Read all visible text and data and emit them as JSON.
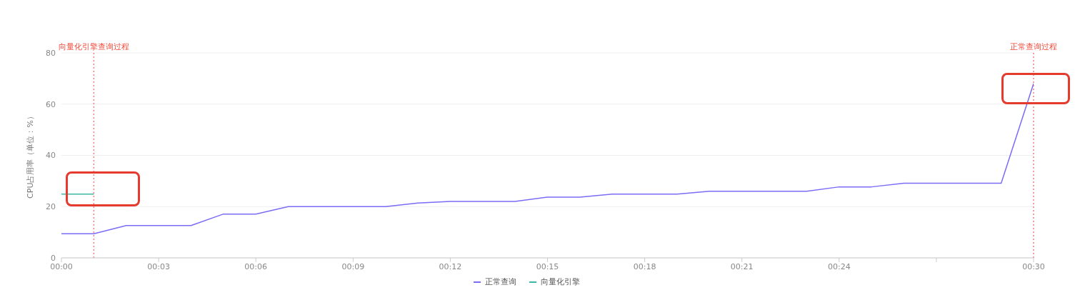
{
  "chart_data": {
    "type": "line",
    "ylabel": "CPU占用率（单位：%）",
    "x": [
      0,
      1,
      2,
      3,
      4,
      5,
      6,
      7,
      8,
      9,
      10,
      11,
      12,
      13,
      14,
      15,
      16,
      17,
      18,
      19,
      20,
      21,
      22,
      23,
      24,
      25,
      26,
      27,
      28,
      29,
      30
    ],
    "series": [
      {
        "name": "正常查询",
        "color": "#7b6cf6",
        "values": [
          9.4,
          9.4,
          12.6,
          12.6,
          12.6,
          17.1,
          17.1,
          20,
          20,
          20,
          20,
          21.4,
          22,
          22,
          22,
          23.7,
          23.7,
          24.9,
          24.9,
          24.9,
          26,
          26,
          26,
          26,
          27.7,
          27.7,
          29.1,
          29.1,
          29.1,
          29.1,
          68
        ]
      },
      {
        "name": "向量化引擎",
        "color": "#3cb8a8",
        "x": [
          0,
          1
        ],
        "values": [
          24.9,
          24.9
        ]
      }
    ],
    "xlim": [
      0,
      30
    ],
    "xticks": [
      {
        "value": 0,
        "label": "00:00"
      },
      {
        "value": 3,
        "label": "00:03"
      },
      {
        "value": 6,
        "label": "00:06"
      },
      {
        "value": 9,
        "label": "00:09"
      },
      {
        "value": 12,
        "label": "00:12"
      },
      {
        "value": 15,
        "label": "00:15"
      },
      {
        "value": 18,
        "label": "00:18"
      },
      {
        "value": 21,
        "label": "00:21"
      },
      {
        "value": 24,
        "label": "00:24"
      },
      {
        "value": 27,
        "label": null
      },
      {
        "value": 30,
        "label": "00:30"
      }
    ],
    "ylim": [
      0,
      80
    ],
    "yticks": [
      0,
      20,
      40,
      60,
      80
    ],
    "ref_lines": [
      {
        "axis": "x",
        "value": 1,
        "label": "向量化引擎查询过程",
        "color": "#f08080",
        "line_style": "dotted"
      },
      {
        "axis": "x",
        "value": 30,
        "label": "正常查询过程",
        "color": "#f08080",
        "line_style": "dotted"
      }
    ],
    "grid": "y",
    "legend": "bottom",
    "marker": "none",
    "line_style": "solid"
  }
}
